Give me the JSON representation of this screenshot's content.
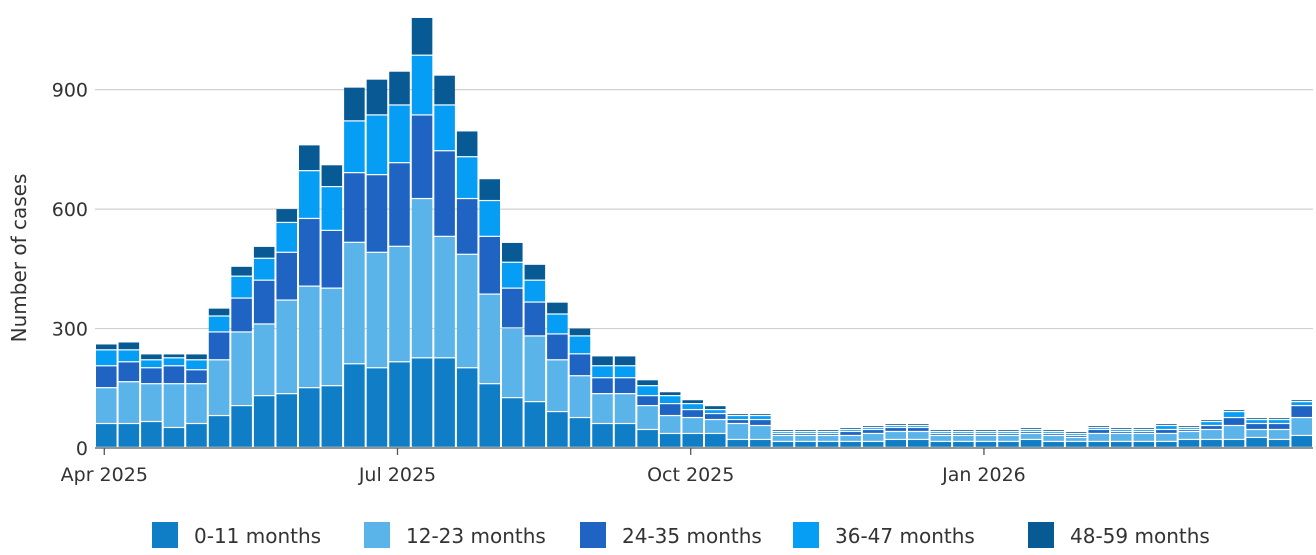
{
  "chart_data": {
    "type": "bar",
    "stacked": true,
    "ylabel": "Number of cases",
    "xlabel": "",
    "ylim": [
      0,
      1100
    ],
    "y_ticks": [
      0,
      300,
      600,
      900
    ],
    "y_tick_labels": [
      "0",
      "300",
      "600",
      "900"
    ],
    "x_tick_labels": [
      {
        "label": "Apr 2025",
        "week_index": 0
      },
      {
        "label": "Jul 2025",
        "week_index": 13
      },
      {
        "label": "Oct 2025",
        "week_index": 26
      },
      {
        "label": "Jan 2026",
        "week_index": 39
      }
    ],
    "grid": "horizontal",
    "legend_position": "bottom",
    "series": [
      {
        "name": "0-11 months",
        "color": "#0f7ec6",
        "values": [
          60,
          60,
          65,
          50,
          60,
          80,
          105,
          130,
          135,
          150,
          155,
          210,
          200,
          215,
          225,
          225,
          200,
          160,
          125,
          115,
          90,
          75,
          60,
          60,
          45,
          35,
          35,
          35,
          20,
          20,
          15,
          15,
          15,
          15,
          15,
          20,
          20,
          15,
          15,
          15,
          15,
          20,
          15,
          15,
          15,
          15,
          15,
          15,
          20,
          20,
          20,
          25,
          20,
          30
        ]
      },
      {
        "name": "12-23 months",
        "color": "#5ab4ea",
        "values": [
          90,
          105,
          95,
          110,
          100,
          140,
          185,
          180,
          235,
          255,
          245,
          305,
          290,
          290,
          400,
          305,
          285,
          225,
          175,
          165,
          130,
          105,
          75,
          75,
          60,
          45,
          40,
          35,
          40,
          35,
          15,
          15,
          15,
          15,
          20,
          20,
          20,
          15,
          15,
          15,
          15,
          15,
          15,
          10,
          20,
          20,
          20,
          20,
          20,
          25,
          35,
          20,
          25,
          45
        ]
      },
      {
        "name": "24-35 months",
        "color": "#1f64c3",
        "values": [
          55,
          50,
          40,
          45,
          35,
          70,
          85,
          110,
          120,
          170,
          145,
          175,
          195,
          210,
          210,
          215,
          140,
          145,
          100,
          85,
          65,
          55,
          40,
          40,
          25,
          30,
          20,
          15,
          10,
          15,
          5,
          5,
          5,
          10,
          10,
          10,
          10,
          5,
          5,
          5,
          5,
          5,
          5,
          5,
          10,
          5,
          5,
          10,
          5,
          10,
          20,
          15,
          15,
          30
        ]
      },
      {
        "name": "36-47 months",
        "color": "#069ef5",
        "values": [
          40,
          30,
          20,
          20,
          25,
          40,
          55,
          55,
          75,
          120,
          110,
          130,
          150,
          145,
          150,
          115,
          105,
          90,
          65,
          55,
          50,
          45,
          30,
          30,
          25,
          20,
          15,
          10,
          10,
          10,
          5,
          5,
          5,
          5,
          5,
          5,
          5,
          5,
          5,
          5,
          5,
          5,
          5,
          5,
          5,
          5,
          5,
          10,
          5,
          10,
          15,
          10,
          10,
          10
        ]
      },
      {
        "name": "48-59 months",
        "color": "#085a94",
        "values": [
          15,
          20,
          15,
          10,
          15,
          20,
          25,
          30,
          35,
          65,
          55,
          85,
          90,
          85,
          95,
          75,
          65,
          55,
          50,
          40,
          30,
          20,
          25,
          25,
          15,
          10,
          10,
          10,
          5,
          5,
          5,
          5,
          5,
          5,
          5,
          5,
          5,
          5,
          5,
          5,
          5,
          5,
          5,
          5,
          5,
          5,
          5,
          5,
          5,
          5,
          5,
          5,
          5,
          5
        ]
      }
    ]
  }
}
